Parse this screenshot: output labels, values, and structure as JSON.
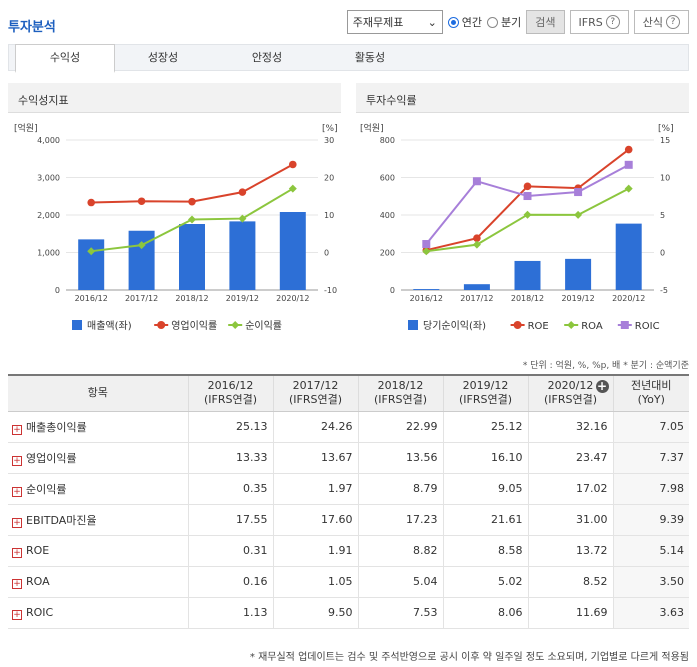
{
  "header": {
    "title": "투자분석"
  },
  "controls": {
    "select_value": "주재무제표",
    "radio_annual": "연간",
    "radio_quarter": "분기",
    "search_label": "검색",
    "ifrs_label": "IFRS",
    "formula_label": "산식",
    "help_glyph": "?",
    "chevron": "⌄"
  },
  "tabs": [
    "수익성",
    "성장성",
    "안정성",
    "활동성"
  ],
  "charts": {
    "left": {
      "title": "수익성지표",
      "unit_left": "[억원]",
      "unit_right": "[%]",
      "yticks_left": [
        "4,000",
        "3,000",
        "2,000",
        "1,000",
        "0"
      ],
      "yticks_right": [
        "30",
        "20",
        "10",
        "0",
        "-10"
      ],
      "legend": [
        "매출액(좌)",
        "영업이익률",
        "순이익률"
      ]
    },
    "right": {
      "title": "투자수익률",
      "unit_left": "[억원]",
      "unit_right": "[%]",
      "yticks_left": [
        "800",
        "600",
        "400",
        "200",
        "0"
      ],
      "yticks_right": [
        "15",
        "10",
        "5",
        "0",
        "-5"
      ],
      "legend": [
        "당기순이익(좌)",
        "ROE",
        "ROA",
        "ROIC"
      ]
    }
  },
  "chart_data": [
    {
      "type": "bar",
      "title": "수익성지표",
      "categories": [
        "2016/12",
        "2017/12",
        "2018/12",
        "2019/12",
        "2020/12"
      ],
      "ylim_left": [
        0,
        4000
      ],
      "ylim_right": [
        -10,
        30
      ],
      "series": [
        {
          "name": "매출액(좌)",
          "axis": "left",
          "kind": "bar",
          "color": "#2d6fd6",
          "values": [
            1350,
            1580,
            1760,
            1830,
            2080
          ]
        },
        {
          "name": "영업이익률",
          "axis": "right",
          "kind": "line",
          "color": "#d9432b",
          "values": [
            13.33,
            13.67,
            13.56,
            16.1,
            23.47
          ]
        },
        {
          "name": "순이익률",
          "axis": "right",
          "kind": "line",
          "color": "#8cc63e",
          "values": [
            0.35,
            1.97,
            8.79,
            9.05,
            17.02
          ]
        }
      ]
    },
    {
      "type": "bar",
      "title": "투자수익률",
      "categories": [
        "2016/12",
        "2017/12",
        "2018/12",
        "2019/12",
        "2020/12"
      ],
      "ylim_left": [
        0,
        800
      ],
      "ylim_right": [
        -5,
        15
      ],
      "series": [
        {
          "name": "당기순이익(좌)",
          "axis": "left",
          "kind": "bar",
          "color": "#2d6fd6",
          "values": [
            5,
            31,
            155,
            166,
            354
          ]
        },
        {
          "name": "ROE",
          "axis": "right",
          "kind": "line",
          "marker": "circle",
          "color": "#d9432b",
          "values": [
            0.31,
            1.91,
            8.82,
            8.58,
            13.72
          ]
        },
        {
          "name": "ROA",
          "axis": "right",
          "kind": "line",
          "marker": "diamond",
          "color": "#8cc63e",
          "values": [
            0.16,
            1.05,
            5.04,
            5.02,
            8.52
          ]
        },
        {
          "name": "ROIC",
          "axis": "right",
          "kind": "line",
          "marker": "square",
          "color": "#a77fd9",
          "values": [
            1.13,
            9.5,
            7.53,
            8.06,
            11.69
          ]
        }
      ]
    }
  ],
  "table": {
    "unit_note": "* 단위 : 억원, %, %p, 배   * 분기 : 순액기준",
    "head_item": "항목",
    "columns": [
      {
        "year": "2016/12",
        "type": "(IFRS연결)"
      },
      {
        "year": "2017/12",
        "type": "(IFRS연결)"
      },
      {
        "year": "2018/12",
        "type": "(IFRS연결)"
      },
      {
        "year": "2019/12",
        "type": "(IFRS연결)"
      },
      {
        "year": "2020/12",
        "type": "(IFRS연결)"
      }
    ],
    "yoy_head": "전년대비",
    "yoy_sub": "(YoY)",
    "expand_glyph": "+",
    "rows": [
      {
        "label": "매출총이익률",
        "values": [
          "25.13",
          "24.26",
          "22.99",
          "25.12",
          "32.16"
        ],
        "yoy": "7.05"
      },
      {
        "label": "영업이익률",
        "values": [
          "13.33",
          "13.67",
          "13.56",
          "16.10",
          "23.47"
        ],
        "yoy": "7.37"
      },
      {
        "label": "순이익률",
        "values": [
          "0.35",
          "1.97",
          "8.79",
          "9.05",
          "17.02"
        ],
        "yoy": "7.98"
      },
      {
        "label": "EBITDA마진율",
        "values": [
          "17.55",
          "17.60",
          "17.23",
          "21.61",
          "31.00"
        ],
        "yoy": "9.39"
      },
      {
        "label": "ROE",
        "values": [
          "0.31",
          "1.91",
          "8.82",
          "8.58",
          "13.72"
        ],
        "yoy": "5.14"
      },
      {
        "label": "ROA",
        "values": [
          "0.16",
          "1.05",
          "5.04",
          "5.02",
          "8.52"
        ],
        "yoy": "3.50"
      },
      {
        "label": "ROIC",
        "values": [
          "1.13",
          "9.50",
          "7.53",
          "8.06",
          "11.69"
        ],
        "yoy": "3.63"
      }
    ]
  },
  "footnote": "* 재무실적 업데이트는 검수 및 주석반영으로 공시 이후 약 일주일 정도 소요되며, 기업별로 다르게 적용됨"
}
